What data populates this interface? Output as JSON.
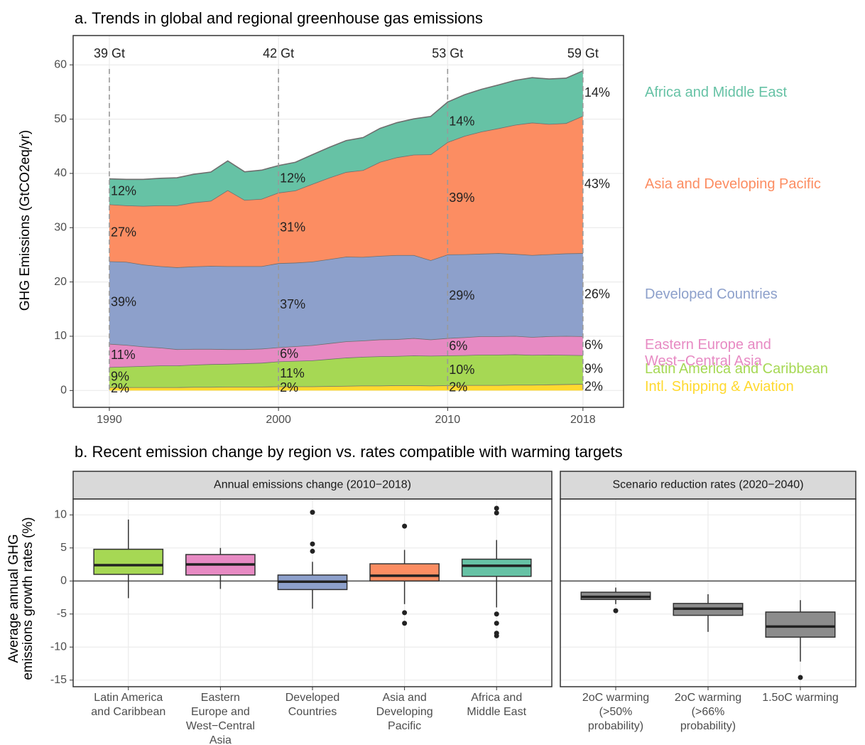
{
  "chart_data": [
    {
      "type": "area",
      "title": "a. Trends in global and regional greenhouse gas emissions",
      "ylabel": "GHG Emissions (GtCO2eq/yr)",
      "x": [
        1990,
        1991,
        1992,
        1993,
        1994,
        1995,
        1996,
        1997,
        1998,
        1999,
        2000,
        2001,
        2002,
        2003,
        2004,
        2005,
        2006,
        2007,
        2008,
        2009,
        2010,
        2011,
        2012,
        2013,
        2014,
        2015,
        2016,
        2017,
        2018
      ],
      "xlim": [
        1987.86,
        2020.4
      ],
      "xticks": [
        1990,
        2000,
        2010,
        2018
      ],
      "ylim": [
        -3.1,
        65.4
      ],
      "yticks": [
        0,
        10,
        20,
        30,
        40,
        50,
        60
      ],
      "grid": true,
      "series": [
        {
          "name": "Intl. Shipping & Aviation",
          "color": "#FFD92F",
          "values": [
            0.6,
            0.6,
            0.6,
            0.6,
            0.6,
            0.65,
            0.65,
            0.7,
            0.7,
            0.7,
            0.75,
            0.75,
            0.75,
            0.8,
            0.85,
            0.9,
            0.9,
            0.95,
            0.95,
            0.9,
            0.95,
            1.0,
            1.0,
            1.0,
            1.05,
            1.05,
            1.1,
            1.15,
            1.2
          ]
        },
        {
          "name": "Latin America and Caribbean",
          "color": "#A6D854",
          "values": [
            3.7,
            3.8,
            3.9,
            4.0,
            4.0,
            4.1,
            4.2,
            4.2,
            4.3,
            4.4,
            4.6,
            4.7,
            4.8,
            5.0,
            5.2,
            5.3,
            5.4,
            5.4,
            5.5,
            5.5,
            5.5,
            5.5,
            5.6,
            5.6,
            5.6,
            5.5,
            5.5,
            5.4,
            5.3
          ]
        },
        {
          "name": "Eastern Europe and West−Central Asia",
          "color": "#E78AC3",
          "values": [
            4.3,
            4.0,
            3.6,
            3.3,
            3.0,
            2.9,
            2.8,
            2.7,
            2.6,
            2.6,
            2.6,
            2.7,
            2.8,
            2.9,
            3.0,
            3.0,
            3.1,
            3.1,
            3.2,
            3.0,
            3.2,
            3.3,
            3.4,
            3.4,
            3.4,
            3.3,
            3.4,
            3.5,
            3.5
          ]
        },
        {
          "name": "Developed Countries",
          "color": "#8DA0CB",
          "values": [
            15.2,
            15.3,
            15.1,
            15.0,
            15.1,
            15.2,
            15.3,
            15.3,
            15.3,
            15.2,
            15.5,
            15.4,
            15.4,
            15.5,
            15.6,
            15.4,
            15.4,
            15.5,
            15.3,
            14.6,
            15.4,
            15.3,
            15.2,
            15.3,
            15.1,
            15.1,
            15.1,
            15.2,
            15.3
          ]
        },
        {
          "name": "Asia and Developing Pacific",
          "color": "#FC8D62",
          "values": [
            10.5,
            10.4,
            10.8,
            11.2,
            11.4,
            11.8,
            12.0,
            14.0,
            12.2,
            12.4,
            13.0,
            13.3,
            14.3,
            15.0,
            15.6,
            16.0,
            17.3,
            18.0,
            18.5,
            19.5,
            20.7,
            21.8,
            22.5,
            23.0,
            23.8,
            24.4,
            24.0,
            24.0,
            25.3
          ]
        },
        {
          "name": "Africa and Middle East",
          "color": "#66C2A5",
          "values": [
            4.7,
            4.8,
            4.9,
            5.0,
            5.1,
            5.2,
            5.3,
            5.4,
            5.2,
            5.3,
            5.0,
            5.2,
            5.4,
            5.6,
            5.8,
            6.0,
            6.2,
            6.4,
            6.6,
            7.0,
            7.4,
            7.6,
            7.8,
            8.0,
            8.2,
            8.3,
            8.3,
            8.3,
            8.3
          ]
        }
      ],
      "markers": [
        {
          "x": 1990,
          "total": "39 Gt",
          "shares": [
            "2%",
            "9%",
            "11%",
            "39%",
            "27%",
            "12%"
          ]
        },
        {
          "x": 2000,
          "total": "42 Gt",
          "shares": [
            "2%",
            "11%",
            "6%",
            "37%",
            "31%",
            "12%"
          ]
        },
        {
          "x": 2010,
          "total": "53 Gt",
          "shares": [
            "2%",
            "10%",
            "6%",
            "29%",
            "39%",
            "14%"
          ]
        },
        {
          "x": 2018,
          "total": "59 Gt",
          "shares": [
            "2%",
            "9%",
            "6%",
            "26%",
            "43%",
            "14%"
          ]
        }
      ]
    },
    {
      "type": "box",
      "title": "b. Recent emission change by region vs. rates compatible with warming targets",
      "ylabel": "Average annual GHG emissions growth rates (%)",
      "ylim": [
        -16,
        12.4
      ],
      "yticks": [
        -15,
        -10,
        -5,
        0,
        5,
        10
      ],
      "grid": true,
      "facets": [
        {
          "strip": "Annual emissions change (2010−2018)",
          "categories": [
            "Latin America and Caribbean",
            "Eastern Europe and West−Central Asia",
            "Developed Countries",
            "Asia and Developing Pacific",
            "Africa and Middle East"
          ],
          "colors": [
            "#A6D854",
            "#E78AC3",
            "#8DA0CB",
            "#FC8D62",
            "#66C2A5"
          ],
          "boxes": [
            {
              "low": -2.6,
              "q1": 1.0,
              "median": 2.4,
              "q3": 4.8,
              "high": 9.3,
              "outliers": []
            },
            {
              "low": -1.2,
              "q1": 0.9,
              "median": 2.5,
              "q3": 4.0,
              "high": 5.0,
              "outliers": []
            },
            {
              "low": -4.2,
              "q1": -1.3,
              "median": -0.1,
              "q3": 0.9,
              "high": 2.9,
              "outliers": [
                4.5,
                5.6,
                10.4
              ]
            },
            {
              "low": -3.5,
              "q1": 0.0,
              "median": 0.8,
              "q3": 2.6,
              "high": 4.7,
              "outliers": [
                8.3,
                -4.8,
                -6.4
              ]
            },
            {
              "low": -4.0,
              "q1": 0.7,
              "median": 2.3,
              "q3": 3.3,
              "high": 6.2,
              "outliers": [
                10.3,
                11.0,
                -5.0,
                -6.4,
                -7.9,
                -8.3
              ]
            }
          ]
        },
        {
          "strip": "Scenario reduction rates (2020−2040)",
          "categories": [
            "2oC warming (>50% probability)",
            "2oC warming (>66% probability)",
            "1.5oC warming"
          ],
          "colors": [
            "#8c8c8c",
            "#8c8c8c",
            "#8c8c8c"
          ],
          "boxes": [
            {
              "low": -3.5,
              "q1": -2.8,
              "median": -2.4,
              "q3": -1.7,
              "high": -1.0,
              "outliers": [
                -4.5
              ]
            },
            {
              "low": -7.7,
              "q1": -5.2,
              "median": -4.2,
              "q3": -3.4,
              "high": -2.0,
              "outliers": []
            },
            {
              "low": -12.2,
              "q1": -8.5,
              "median": -6.9,
              "q3": -4.7,
              "high": -2.9,
              "outliers": [
                -14.6
              ]
            }
          ]
        }
      ]
    }
  ]
}
